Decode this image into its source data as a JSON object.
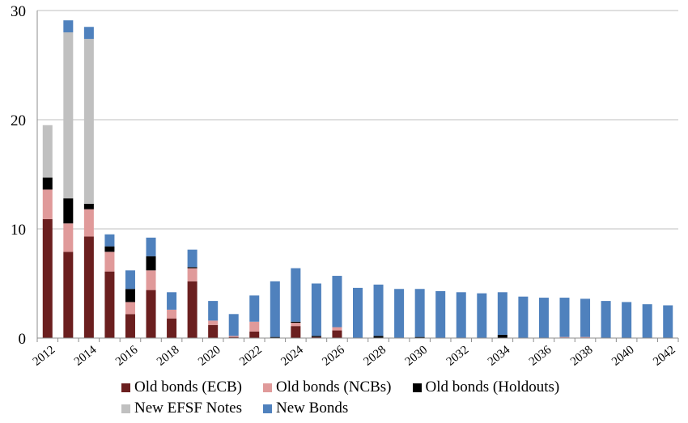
{
  "chart_data": {
    "type": "bar",
    "stacked": true,
    "years": [
      2012,
      2013,
      2014,
      2015,
      2016,
      2017,
      2018,
      2019,
      2020,
      2021,
      2022,
      2023,
      2024,
      2025,
      2026,
      2027,
      2028,
      2029,
      2030,
      2031,
      2032,
      2033,
      2034,
      2035,
      2036,
      2037,
      2038,
      2039,
      2040,
      2041,
      2042
    ],
    "x_tick_labels": [
      "2012",
      "2014",
      "2016",
      "2018",
      "2020",
      "2022",
      "2024",
      "2026",
      "2028",
      "2030",
      "2032",
      "2034",
      "2036",
      "2038",
      "2040",
      "2042"
    ],
    "y_tick_labels": [
      "0",
      "10",
      "20",
      "30"
    ],
    "ylim": [
      0,
      30
    ],
    "y_ticks": [
      0,
      10,
      20,
      30
    ],
    "grid": "horizontal",
    "legend_position": "bottom",
    "series": [
      {
        "name": "Old bonds (ECB)",
        "color": "#6b1f1f",
        "values": [
          10.9,
          7.9,
          9.3,
          6.1,
          2.2,
          4.4,
          1.8,
          5.2,
          1.2,
          0.1,
          0.6,
          0,
          1.1,
          0.1,
          0.7,
          0,
          0,
          0,
          0,
          0,
          0,
          0,
          0,
          0,
          0,
          0,
          0,
          0,
          0,
          0,
          0
        ]
      },
      {
        "name": "Old bonds (NCBs)",
        "color": "#e09a9a",
        "values": [
          2.7,
          2.6,
          2.5,
          1.8,
          1.1,
          1.8,
          0.8,
          1.2,
          0.4,
          0.1,
          0.9,
          0,
          0.3,
          0,
          0.3,
          0,
          0,
          0,
          0,
          0,
          0,
          0,
          0,
          0,
          0,
          0.1,
          0.1,
          0,
          0,
          0,
          0
        ]
      },
      {
        "name": "Old bonds (Holdouts)",
        "color": "#000000",
        "values": [
          1.1,
          2.3,
          0.5,
          0.5,
          1.2,
          1.3,
          0,
          0.1,
          0,
          0,
          0,
          0.1,
          0.1,
          0.1,
          0,
          0,
          0.2,
          0,
          0.1,
          0,
          0,
          0,
          0.3,
          0,
          0,
          0,
          0,
          0,
          0,
          0,
          0
        ]
      },
      {
        "name": "New EFSF Notes",
        "color": "#c0c0c0",
        "values": [
          4.8,
          15.2,
          15.1,
          0,
          0,
          0,
          0,
          0,
          0,
          0,
          0,
          0,
          0,
          0,
          0,
          0,
          0,
          0,
          0,
          0,
          0,
          0,
          0,
          0,
          0,
          0,
          0,
          0,
          0,
          0,
          0
        ]
      },
      {
        "name": "New Bonds",
        "color": "#4f81bd",
        "values": [
          0,
          1.1,
          1.1,
          1.1,
          1.7,
          1.7,
          1.6,
          1.6,
          1.8,
          2.0,
          2.4,
          5.1,
          4.9,
          4.8,
          4.7,
          4.6,
          4.7,
          4.5,
          4.4,
          4.3,
          4.2,
          4.1,
          3.9,
          3.8,
          3.7,
          3.6,
          3.5,
          3.4,
          3.3,
          3.1,
          3.0
        ]
      }
    ]
  }
}
